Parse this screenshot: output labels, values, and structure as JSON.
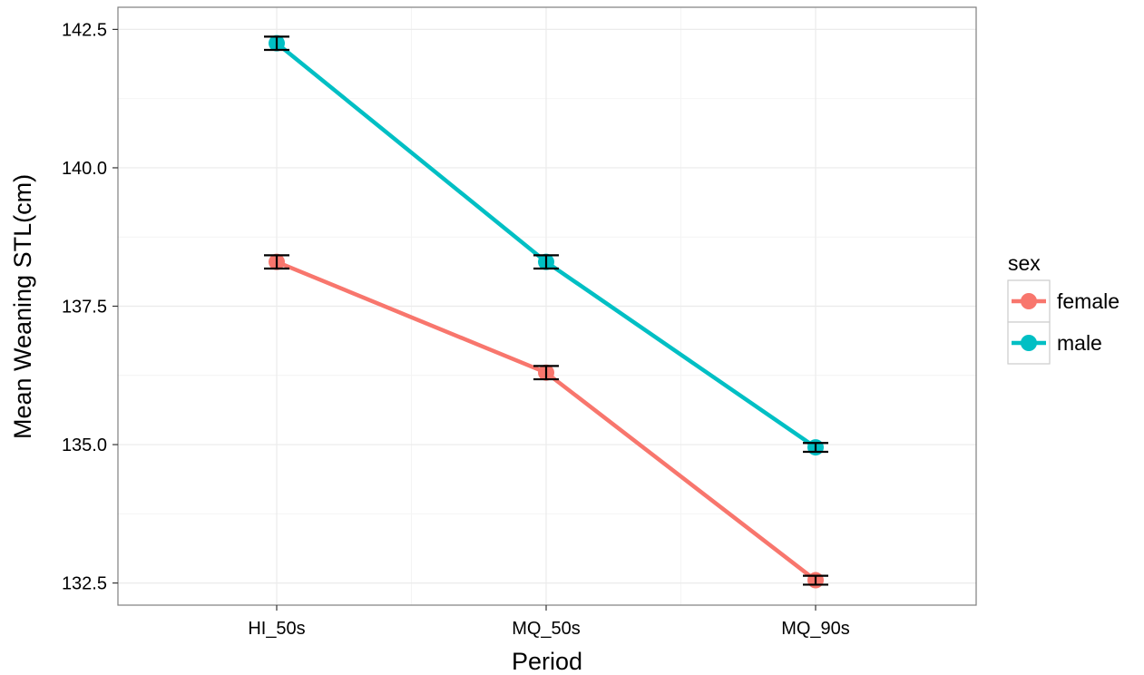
{
  "chart_data": {
    "type": "line",
    "title": "",
    "xlabel": "Period",
    "ylabel": "Mean Weaning STL(cm)",
    "categories": [
      "HI_50s",
      "MQ_50s",
      "MQ_90s"
    ],
    "ylim": [
      132.1,
      142.9
    ],
    "yticks": [
      132.5,
      135.0,
      137.5,
      140.0,
      142.5
    ],
    "ytick_labels": [
      "132.5",
      "135.0",
      "137.5",
      "140.0",
      "142.5"
    ],
    "grid": true,
    "legend": {
      "title": "sex",
      "placement": "right"
    },
    "error_bars": true,
    "series": [
      {
        "name": "female",
        "color": "#F8766D",
        "values": [
          138.3,
          136.3,
          132.55
        ],
        "err": [
          0.12,
          0.12,
          0.08
        ]
      },
      {
        "name": "male",
        "color": "#00BFC4",
        "values": [
          142.25,
          138.3,
          134.95
        ],
        "err": [
          0.12,
          0.12,
          0.08
        ]
      }
    ]
  }
}
